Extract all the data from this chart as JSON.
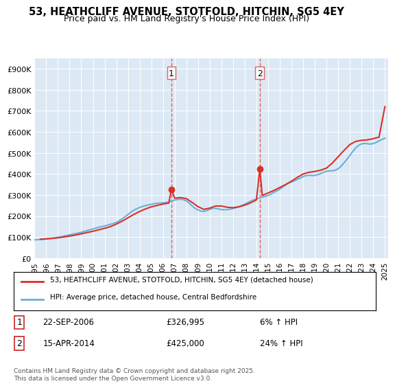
{
  "title": "53, HEATHCLIFF AVENUE, STOTFOLD, HITCHIN, SG5 4EY",
  "subtitle": "Price paid vs. HM Land Registry's House Price Index (HPI)",
  "background_color": "#ffffff",
  "plot_bg_color": "#dce9f5",
  "ylim": [
    0,
    950000
  ],
  "yticks": [
    0,
    100000,
    200000,
    300000,
    400000,
    500000,
    600000,
    700000,
    800000,
    900000
  ],
  "ytick_labels": [
    "£0",
    "£100K",
    "£200K",
    "£300K",
    "£400K",
    "£500K",
    "£600K",
    "£700K",
    "£800K",
    "£900K"
  ],
  "xlabel_years": [
    1995,
    1996,
    1997,
    1998,
    1999,
    2000,
    2001,
    2002,
    2003,
    2004,
    2005,
    2006,
    2007,
    2008,
    2009,
    2010,
    2011,
    2012,
    2013,
    2014,
    2015,
    2016,
    2017,
    2018,
    2019,
    2020,
    2021,
    2022,
    2023,
    2024,
    2025
  ],
  "hpi_line_color": "#6baed6",
  "price_line_color": "#d73027",
  "marker_color": "#d73027",
  "vline_color": "#e06060",
  "vline_style": "--",
  "transaction1_year": 2006.72,
  "transaction1_price": 326995,
  "transaction2_year": 2014.29,
  "transaction2_price": 425000,
  "legend_entry1": "53, HEATHCLIFF AVENUE, STOTFOLD, HITCHIN, SG5 4EY (detached house)",
  "legend_entry2": "HPI: Average price, detached house, Central Bedfordshire",
  "annotation1_label": "1",
  "annotation1_date": "22-SEP-2006",
  "annotation1_price": "£326,995",
  "annotation1_hpi": "6% ↑ HPI",
  "annotation2_label": "2",
  "annotation2_date": "15-APR-2014",
  "annotation2_price": "£425,000",
  "annotation2_hpi": "24% ↑ HPI",
  "footer": "Contains HM Land Registry data © Crown copyright and database right 2025.\nThis data is licensed under the Open Government Licence v3.0.",
  "hpi_x": [
    1995,
    1995.25,
    1995.5,
    1995.75,
    1996,
    1996.25,
    1996.5,
    1996.75,
    1997,
    1997.25,
    1997.5,
    1997.75,
    1998,
    1998.25,
    1998.5,
    1998.75,
    1999,
    1999.25,
    1999.5,
    1999.75,
    2000,
    2000.25,
    2000.5,
    2000.75,
    2001,
    2001.25,
    2001.5,
    2001.75,
    2002,
    2002.25,
    2002.5,
    2002.75,
    2003,
    2003.25,
    2003.5,
    2003.75,
    2004,
    2004.25,
    2004.5,
    2004.75,
    2005,
    2005.25,
    2005.5,
    2005.75,
    2006,
    2006.25,
    2006.5,
    2006.75,
    2007,
    2007.25,
    2007.5,
    2007.75,
    2008,
    2008.25,
    2008.5,
    2008.75,
    2009,
    2009.25,
    2009.5,
    2009.75,
    2010,
    2010.25,
    2010.5,
    2010.75,
    2011,
    2011.25,
    2011.5,
    2011.75,
    2012,
    2012.25,
    2012.5,
    2012.75,
    2013,
    2013.25,
    2013.5,
    2013.75,
    2014,
    2014.25,
    2014.5,
    2014.75,
    2015,
    2015.25,
    2015.5,
    2015.75,
    2016,
    2016.25,
    2016.5,
    2016.75,
    2017,
    2017.25,
    2017.5,
    2017.75,
    2018,
    2018.25,
    2018.5,
    2018.75,
    2019,
    2019.25,
    2019.5,
    2019.75,
    2020,
    2020.25,
    2020.5,
    2020.75,
    2021,
    2021.25,
    2021.5,
    2021.75,
    2022,
    2022.25,
    2022.5,
    2022.75,
    2023,
    2023.25,
    2023.5,
    2023.75,
    2024,
    2024.25,
    2024.5,
    2024.75,
    2025
  ],
  "hpi_y": [
    87000,
    88000,
    89000,
    90000,
    91000,
    93000,
    95000,
    97000,
    99000,
    102000,
    105000,
    108000,
    111000,
    114000,
    117000,
    120000,
    123000,
    127000,
    131000,
    135000,
    139000,
    143000,
    147000,
    150000,
    153000,
    157000,
    161000,
    165000,
    170000,
    178000,
    187000,
    197000,
    208000,
    219000,
    228000,
    235000,
    241000,
    246000,
    250000,
    253000,
    256000,
    259000,
    261000,
    262000,
    263000,
    265000,
    268000,
    272000,
    276000,
    279000,
    280000,
    278000,
    272000,
    262000,
    248000,
    237000,
    229000,
    224000,
    222000,
    226000,
    232000,
    237000,
    237000,
    234000,
    231000,
    230000,
    231000,
    233000,
    236000,
    240000,
    245000,
    251000,
    257000,
    264000,
    271000,
    277000,
    282000,
    286000,
    290000,
    294000,
    298000,
    305000,
    313000,
    320000,
    328000,
    338000,
    348000,
    356000,
    362000,
    368000,
    374000,
    381000,
    388000,
    392000,
    394000,
    393000,
    393000,
    397000,
    402000,
    408000,
    413000,
    415000,
    415000,
    418000,
    425000,
    437000,
    453000,
    470000,
    488000,
    507000,
    524000,
    536000,
    543000,
    545000,
    544000,
    542000,
    545000,
    550000,
    558000,
    564000,
    570000
  ],
  "price_x": [
    1995.5,
    1996.0,
    1996.5,
    1997.0,
    1997.5,
    1998.0,
    1998.5,
    1999.0,
    1999.5,
    2000.0,
    2000.5,
    2001.0,
    2001.5,
    2002.0,
    2002.5,
    2003.0,
    2003.5,
    2004.0,
    2004.5,
    2005.0,
    2005.5,
    2006.0,
    2006.5,
    2006.72,
    2007.0,
    2007.5,
    2008.0,
    2008.5,
    2009.0,
    2009.5,
    2010.0,
    2010.5,
    2011.0,
    2011.5,
    2012.0,
    2012.5,
    2013.0,
    2013.5,
    2014.0,
    2014.29,
    2014.5,
    2015.0,
    2015.5,
    2016.0,
    2016.5,
    2017.0,
    2017.5,
    2018.0,
    2018.5,
    2019.0,
    2019.5,
    2020.0,
    2020.5,
    2021.0,
    2021.5,
    2022.0,
    2022.5,
    2023.0,
    2023.5,
    2024.0,
    2024.5,
    2025.0
  ],
  "price_y": [
    90000,
    92000,
    94000,
    97000,
    101000,
    105000,
    110000,
    116000,
    122000,
    128000,
    135000,
    142000,
    150000,
    162000,
    176000,
    192000,
    208000,
    222000,
    234000,
    244000,
    251000,
    257000,
    262000,
    326995,
    285000,
    288000,
    283000,
    265000,
    245000,
    232000,
    238000,
    248000,
    248000,
    242000,
    240000,
    244000,
    252000,
    263000,
    277000,
    425000,
    298000,
    310000,
    322000,
    336000,
    350000,
    366000,
    384000,
    400000,
    408000,
    412000,
    418000,
    428000,
    452000,
    482000,
    512000,
    540000,
    555000,
    560000,
    562000,
    568000,
    575000,
    720000
  ]
}
